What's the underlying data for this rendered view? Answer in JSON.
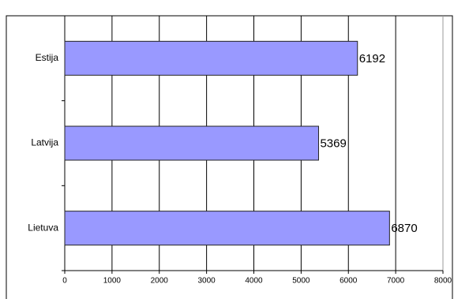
{
  "chart_data": {
    "type": "bar",
    "orientation": "horizontal",
    "categories": [
      "Estija",
      "Latvija",
      "Lietuva"
    ],
    "values": [
      6192,
      5369,
      6870
    ],
    "color": "#9999ff",
    "xlim": [
      0,
      8000
    ],
    "xticks": [
      0,
      1000,
      2000,
      3000,
      4000,
      5000,
      6000,
      7000,
      8000
    ],
    "grid": true
  }
}
